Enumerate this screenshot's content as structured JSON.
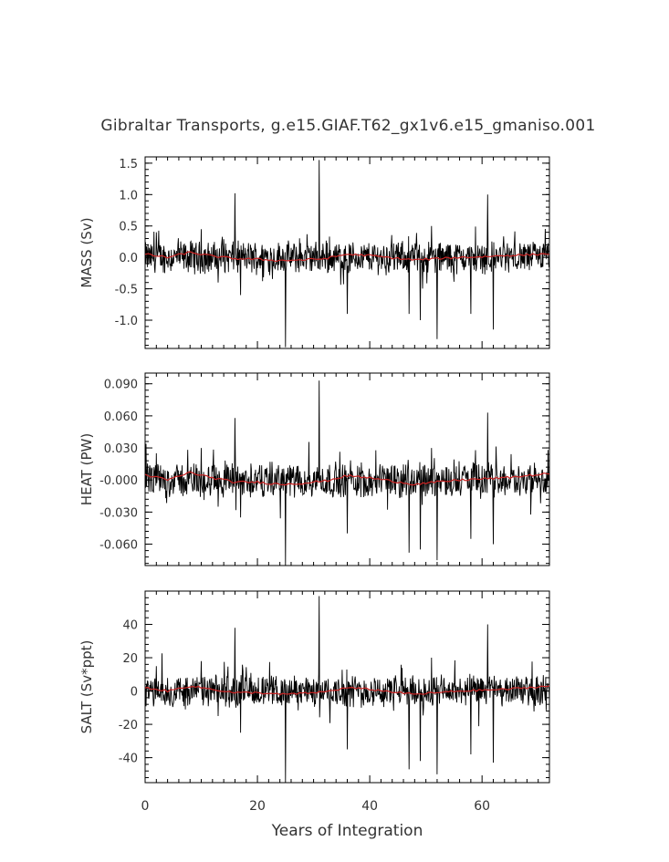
{
  "title": "Gibraltar Transports, g.e15.GIAF.T62_gx1v6.e15_gmaniso.001",
  "chart_data": [
    {
      "type": "line",
      "ylabel": "MASS (Sv)",
      "xlim": [
        0,
        72
      ],
      "ylim": [
        -1.45,
        1.6
      ],
      "yticks": [
        1.5,
        1.0,
        0.5,
        0.0,
        -0.5,
        -1.0
      ],
      "ytick_labels": [
        "1.5",
        "1.0",
        "0.5",
        "0.0",
        "-0.5",
        "-1.0"
      ],
      "grid": false,
      "series": [
        {
          "color": "#000000",
          "description": "monthly transport, noisy around 0 with spikes",
          "x": [
            0,
            2,
            5,
            10,
            13,
            16,
            17,
            18,
            21,
            25,
            29,
            31,
            33,
            36,
            40,
            42,
            44,
            47,
            49,
            51,
            52,
            55,
            57,
            58,
            61,
            62,
            65,
            68,
            71.5
          ],
          "y": [
            0.0,
            0.4,
            -0.25,
            0.45,
            -0.4,
            1.02,
            -0.6,
            -0.2,
            0.3,
            -1.43,
            0.2,
            1.55,
            0.25,
            -0.9,
            0.3,
            0.2,
            -0.1,
            -0.9,
            -1.0,
            0.5,
            -1.3,
            -0.3,
            0.25,
            -0.9,
            1.0,
            -1.15,
            0.3,
            -0.2,
            0.0
          ],
          "noise_amplitude": 0.22
        },
        {
          "color": "#cc2222",
          "description": "smoothed (annual mean)",
          "x": [
            0,
            4,
            8,
            12,
            16,
            20,
            24,
            28,
            32,
            36,
            40,
            44,
            48,
            52,
            56,
            60,
            64,
            68,
            72
          ],
          "y": [
            0.05,
            0.0,
            0.08,
            0.02,
            -0.02,
            -0.03,
            -0.05,
            -0.04,
            -0.02,
            0.05,
            0.03,
            -0.01,
            -0.04,
            -0.02,
            0.0,
            0.01,
            0.03,
            0.04,
            0.06
          ]
        }
      ]
    },
    {
      "type": "line",
      "ylabel": "HEAT (PW)",
      "xlim": [
        0,
        72
      ],
      "ylim": [
        -0.08,
        0.1
      ],
      "yticks": [
        0.09,
        0.06,
        0.03,
        0.0,
        -0.03,
        -0.06
      ],
      "ytick_labels": [
        "0.090",
        "0.060",
        "0.030",
        "-0.000",
        "-0.030",
        "-0.060"
      ],
      "grid": false,
      "series": [
        {
          "color": "#000000",
          "description": "monthly heat transport",
          "x": [
            0,
            2,
            5,
            10,
            13,
            16,
            17,
            18,
            21,
            25,
            29,
            31,
            33,
            36,
            40,
            42,
            44,
            47,
            49,
            51,
            52,
            55,
            57,
            58,
            61,
            62,
            65,
            68,
            71.5
          ],
          "y": [
            0.0,
            0.025,
            -0.015,
            0.03,
            -0.025,
            0.058,
            -0.035,
            -0.012,
            0.02,
            -0.08,
            0.012,
            0.093,
            0.015,
            -0.05,
            0.018,
            0.012,
            -0.006,
            -0.068,
            -0.065,
            0.03,
            -0.075,
            -0.02,
            0.015,
            -0.055,
            0.063,
            -0.06,
            0.02,
            -0.012,
            0.0
          ],
          "noise_amplitude": 0.014
        },
        {
          "color": "#cc2222",
          "description": "smoothed (annual mean)",
          "x": [
            0,
            4,
            8,
            12,
            16,
            20,
            24,
            28,
            32,
            36,
            40,
            44,
            48,
            52,
            56,
            60,
            64,
            68,
            72
          ],
          "y": [
            0.005,
            0.0,
            0.007,
            0.002,
            -0.002,
            -0.002,
            -0.004,
            -0.003,
            -0.001,
            0.004,
            0.002,
            -0.001,
            -0.004,
            -0.002,
            0.0,
            0.001,
            0.002,
            0.004,
            0.006
          ]
        }
      ]
    },
    {
      "type": "line",
      "ylabel": "SALT (Sv*ppt)",
      "xlabel": "Years of Integration",
      "xlim": [
        0,
        72
      ],
      "ylim": [
        -55,
        60
      ],
      "xticks": [
        0,
        20,
        40,
        60
      ],
      "xtick_labels": [
        "0",
        "20",
        "40",
        "60"
      ],
      "yticks": [
        40,
        20,
        0,
        -20,
        -40
      ],
      "ytick_labels": [
        "40",
        "20",
        "0",
        "-20",
        "-40"
      ],
      "grid": false,
      "series": [
        {
          "color": "#000000",
          "description": "monthly salt transport",
          "x": [
            0,
            2,
            5,
            10,
            13,
            16,
            17,
            18,
            21,
            25,
            29,
            31,
            33,
            36,
            40,
            42,
            44,
            47,
            49,
            51,
            52,
            55,
            57,
            58,
            61,
            62,
            65,
            68,
            71.5
          ],
          "y": [
            0,
            15,
            -10,
            18,
            -15,
            38,
            -25,
            -8,
            12,
            -55,
            8,
            57,
            10,
            -35,
            12,
            8,
            -4,
            -47,
            -42,
            20,
            -50,
            -12,
            10,
            -38,
            40,
            -43,
            12,
            -8,
            0
          ],
          "noise_amplitude": 8
        },
        {
          "color": "#cc2222",
          "description": "smoothed (annual mean)",
          "x": [
            0,
            4,
            8,
            12,
            16,
            20,
            24,
            28,
            32,
            36,
            40,
            44,
            48,
            52,
            56,
            60,
            64,
            68,
            72
          ],
          "y": [
            2,
            0,
            3,
            1,
            -1,
            -1,
            -2,
            -1.5,
            -0.5,
            2,
            1,
            -0.5,
            -2,
            -1,
            0,
            0.5,
            1,
            2,
            3
          ]
        }
      ]
    }
  ]
}
